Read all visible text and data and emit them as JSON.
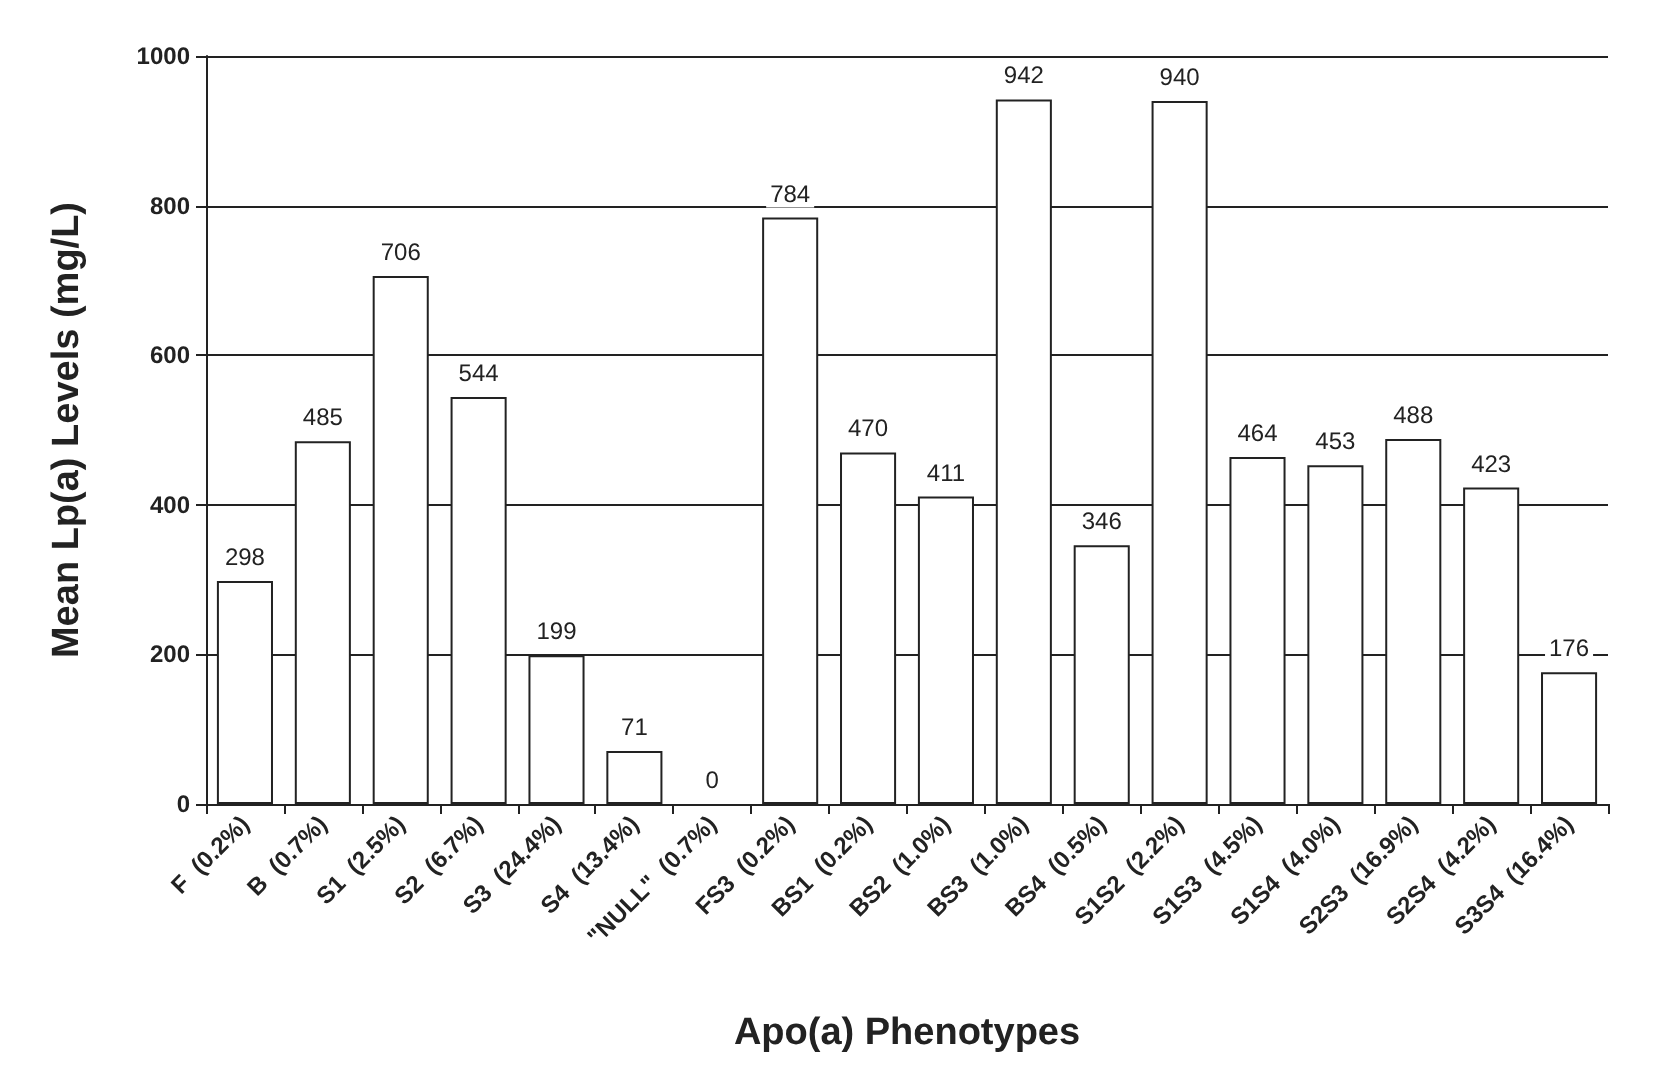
{
  "chart_data": {
    "type": "bar",
    "xlabel": "Apo(a) Phenotypes",
    "ylabel": "Mean Lp(a) Levels (mg/L)",
    "categories": [
      "F  (0.2%)",
      "B  (0.7%)",
      "S1  (2.5%)",
      "S2  (6.7%)",
      "S3  (24.4%)",
      "S4  (13.4%)",
      "\"NULL\"  (0.7%)",
      "FS3  (0.2%)",
      "BS1  (0.2%)",
      "BS2  (1.0%)",
      "BS3  (1.0%)",
      "BS4  (0.5%)",
      "S1S2  (2.2%)",
      "S1S3  (4.5%)",
      "S1S4  (4.0%)",
      "S2S3  (16.9%)",
      "S2S4  (4.2%)",
      "S3S4  (16.4%)"
    ],
    "values": [
      298,
      485,
      706,
      544,
      199,
      71,
      0,
      784,
      470,
      411,
      942,
      346,
      940,
      464,
      453,
      488,
      423,
      176
    ],
    "color": "#ffffff",
    "data_labels": true,
    "ylim": [
      0,
      1000
    ],
    "yticks": [
      0,
      200,
      400,
      600,
      800,
      1000
    ],
    "grid": "y"
  }
}
